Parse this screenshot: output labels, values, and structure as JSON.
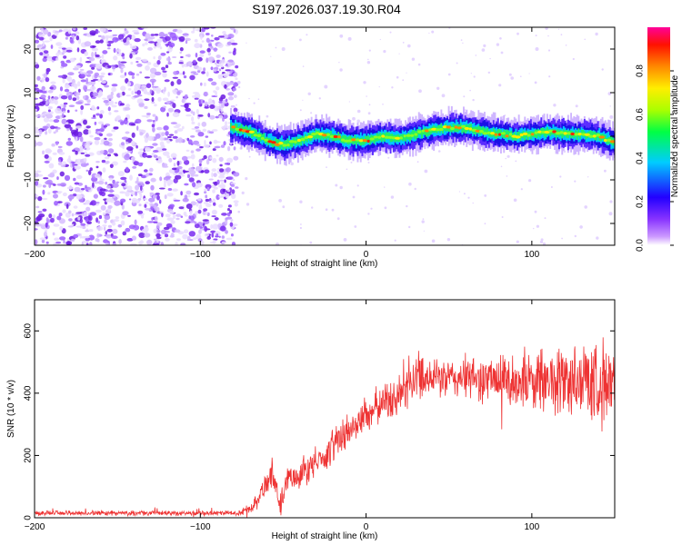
{
  "title": "S197.2026.037.19.30.R04",
  "chart_data": [
    {
      "type": "heatmap",
      "name": "spectrogram",
      "title": "S197.2026.037.19.30.R04",
      "xlabel": "Height of straight line (km)",
      "ylabel": "Frequency (Hz)",
      "xlim": [
        -200,
        150
      ],
      "ylim": [
        -25,
        25
      ],
      "xticks": [
        -200,
        -100,
        0,
        100
      ],
      "yticks": [
        -20,
        -10,
        0,
        10,
        20
      ],
      "noise_region_x": [
        -200,
        -78
      ],
      "signal_region_x": [
        -82,
        150
      ],
      "ridge": {
        "x": [
          -80,
          -70,
          -60,
          -50,
          -40,
          -30,
          -20,
          -10,
          0,
          10,
          20,
          30,
          40,
          50,
          60,
          70,
          80,
          90,
          100,
          110,
          120,
          130,
          140,
          150
        ],
        "freq": [
          2,
          1,
          -1,
          -2,
          -1,
          0.5,
          0,
          -1,
          -1,
          0,
          -0.5,
          0.5,
          1.5,
          2,
          2,
          1,
          0.5,
          0,
          0.5,
          1,
          0.5,
          0.5,
          0,
          -1.5
        ]
      },
      "colorbar": {
        "label": "Normalized spectral amplitude",
        "range": [
          0,
          1
        ],
        "ticks": [
          "0.0",
          "0.2",
          "0.4",
          "0.6",
          "0.8"
        ],
        "colors": [
          "#ffffff",
          "#cc99ff",
          "#6600ff",
          "#0000ff",
          "#00ffff",
          "#00ff00",
          "#ffff00",
          "#ff8800",
          "#ff0000",
          "#ff00aa"
        ]
      }
    },
    {
      "type": "line",
      "name": "snr",
      "xlabel": "Height of straight line (km)",
      "ylabel": "SNR (10 * v/v)",
      "xlim": [
        -200,
        150
      ],
      "ylim": [
        0,
        700
      ],
      "xticks": [
        -200,
        -100,
        0,
        100
      ],
      "yticks": [
        0,
        200,
        400,
        600
      ],
      "color": "#ee3333",
      "series": [
        {
          "name": "SNR",
          "x": [
            -200,
            -150,
            -100,
            -76,
            -70,
            -62,
            -57,
            -52,
            -47,
            -40,
            -30,
            -20,
            -10,
            0,
            10,
            20,
            25,
            30,
            40,
            50,
            60,
            80,
            100,
            120,
            140,
            150
          ],
          "mean": [
            15,
            15,
            15,
            15,
            30,
            90,
            150,
            40,
            130,
            140,
            175,
            230,
            280,
            330,
            370,
            390,
            420,
            460,
            455,
            445,
            450,
            440,
            440,
            440,
            440,
            420
          ],
          "noise": [
            8,
            8,
            8,
            8,
            15,
            40,
            50,
            30,
            40,
            45,
            50,
            55,
            60,
            60,
            60,
            65,
            70,
            75,
            70,
            65,
            70,
            80,
            100,
            120,
            140,
            140
          ]
        }
      ]
    }
  ]
}
